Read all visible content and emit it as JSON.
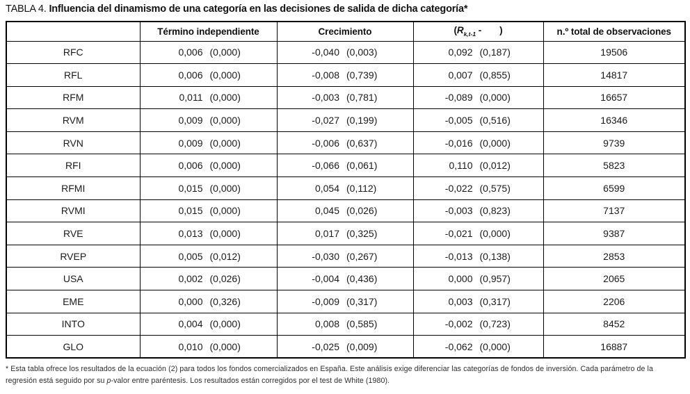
{
  "title": {
    "label": "TABLA 4.",
    "text": "Influencia del dinamismo de una categoría en las decisiones de salida de dicha categoría*"
  },
  "table": {
    "headers": {
      "empty": "",
      "termino": "Término independiente",
      "crecimiento": "Crecimiento",
      "retorno": {
        "open": "(",
        "R": "R",
        "sub": "k,t-1",
        "dash": " -",
        "close": ")"
      },
      "obs": "n.º total de observaciones"
    },
    "rows": [
      {
        "label": "RFC",
        "term": "0,006",
        "term_p": "(0,000)",
        "crec": "-0,040",
        "crec_p": "(0,003)",
        "ret": "0,092",
        "ret_p": "(0,187)",
        "obs": "19506"
      },
      {
        "label": "RFL",
        "term": "0,006",
        "term_p": "(0,000)",
        "crec": "-0,008",
        "crec_p": "(0,739)",
        "ret": "0,007",
        "ret_p": "(0,855)",
        "obs": "14817"
      },
      {
        "label": "RFM",
        "term": "0,011",
        "term_p": "(0,000)",
        "crec": "-0,003",
        "crec_p": "(0,781)",
        "ret": "-0,089",
        "ret_p": "(0,000)",
        "obs": "16657"
      },
      {
        "label": "RVM",
        "term": "0,009",
        "term_p": "(0,000)",
        "crec": "-0,027",
        "crec_p": "(0,199)",
        "ret": "-0,005",
        "ret_p": "(0,516)",
        "obs": "16346"
      },
      {
        "label": "RVN",
        "term": "0,009",
        "term_p": "(0,000)",
        "crec": "-0,006",
        "crec_p": "(0,637)",
        "ret": "-0,016",
        "ret_p": "(0,000)",
        "obs": "9739"
      },
      {
        "label": "RFI",
        "term": "0,006",
        "term_p": "(0,000)",
        "crec": "-0,066",
        "crec_p": "(0,061)",
        "ret": "0,110",
        "ret_p": "(0,012)",
        "obs": "5823"
      },
      {
        "label": "RFMI",
        "term": "0,015",
        "term_p": "(0,000)",
        "crec": "0,054",
        "crec_p": "(0,112)",
        "ret": "-0,022",
        "ret_p": "(0,575)",
        "obs": "6599"
      },
      {
        "label": "RVMI",
        "term": "0,015",
        "term_p": "(0,000)",
        "crec": "0,045",
        "crec_p": "(0,026)",
        "ret": "-0,003",
        "ret_p": "(0,823)",
        "obs": "7137"
      },
      {
        "label": "RVE",
        "term": "0,013",
        "term_p": "(0,000)",
        "crec": "0,017",
        "crec_p": "(0,325)",
        "ret": "-0,021",
        "ret_p": "(0,000)",
        "obs": "9387"
      },
      {
        "label": "RVEP",
        "term": "0,005",
        "term_p": "(0,012)",
        "crec": "-0,030",
        "crec_p": "(0,267)",
        "ret": "-0,013",
        "ret_p": "(0,138)",
        "obs": "2853"
      },
      {
        "label": "USA",
        "term": "0,002",
        "term_p": "(0,026)",
        "crec": "-0,004",
        "crec_p": "(0,436)",
        "ret": "0,000",
        "ret_p": "(0,957)",
        "obs": "2065"
      },
      {
        "label": "EME",
        "term": "0,000",
        "term_p": "(0,326)",
        "crec": "-0,009",
        "crec_p": "(0,317)",
        "ret": "0,003",
        "ret_p": "(0,317)",
        "obs": "2206"
      },
      {
        "label": "INTO",
        "term": "0,004",
        "term_p": "(0,000)",
        "crec": "0,008",
        "crec_p": "(0,585)",
        "ret": "-0,002",
        "ret_p": "(0,723)",
        "obs": "8452"
      },
      {
        "label": "GLO",
        "term": "0,010",
        "term_p": "(0,000)",
        "crec": "-0,025",
        "crec_p": "(0,009)",
        "ret": "-0,062",
        "ret_p": "(0,000)",
        "obs": "16887"
      }
    ]
  },
  "footnote": {
    "pre": "* Esta tabla ofrece los resultados de la ecuación (2) para todos los fondos comercializados en España. Este análisis exige diferenciar las categorías de fondos de inversión. Cada parámetro de la regresión está seguido por su ",
    "italic": "p",
    "post": "-valor entre paréntesis. Los resultados están corregidos por el test de White (1980)."
  }
}
